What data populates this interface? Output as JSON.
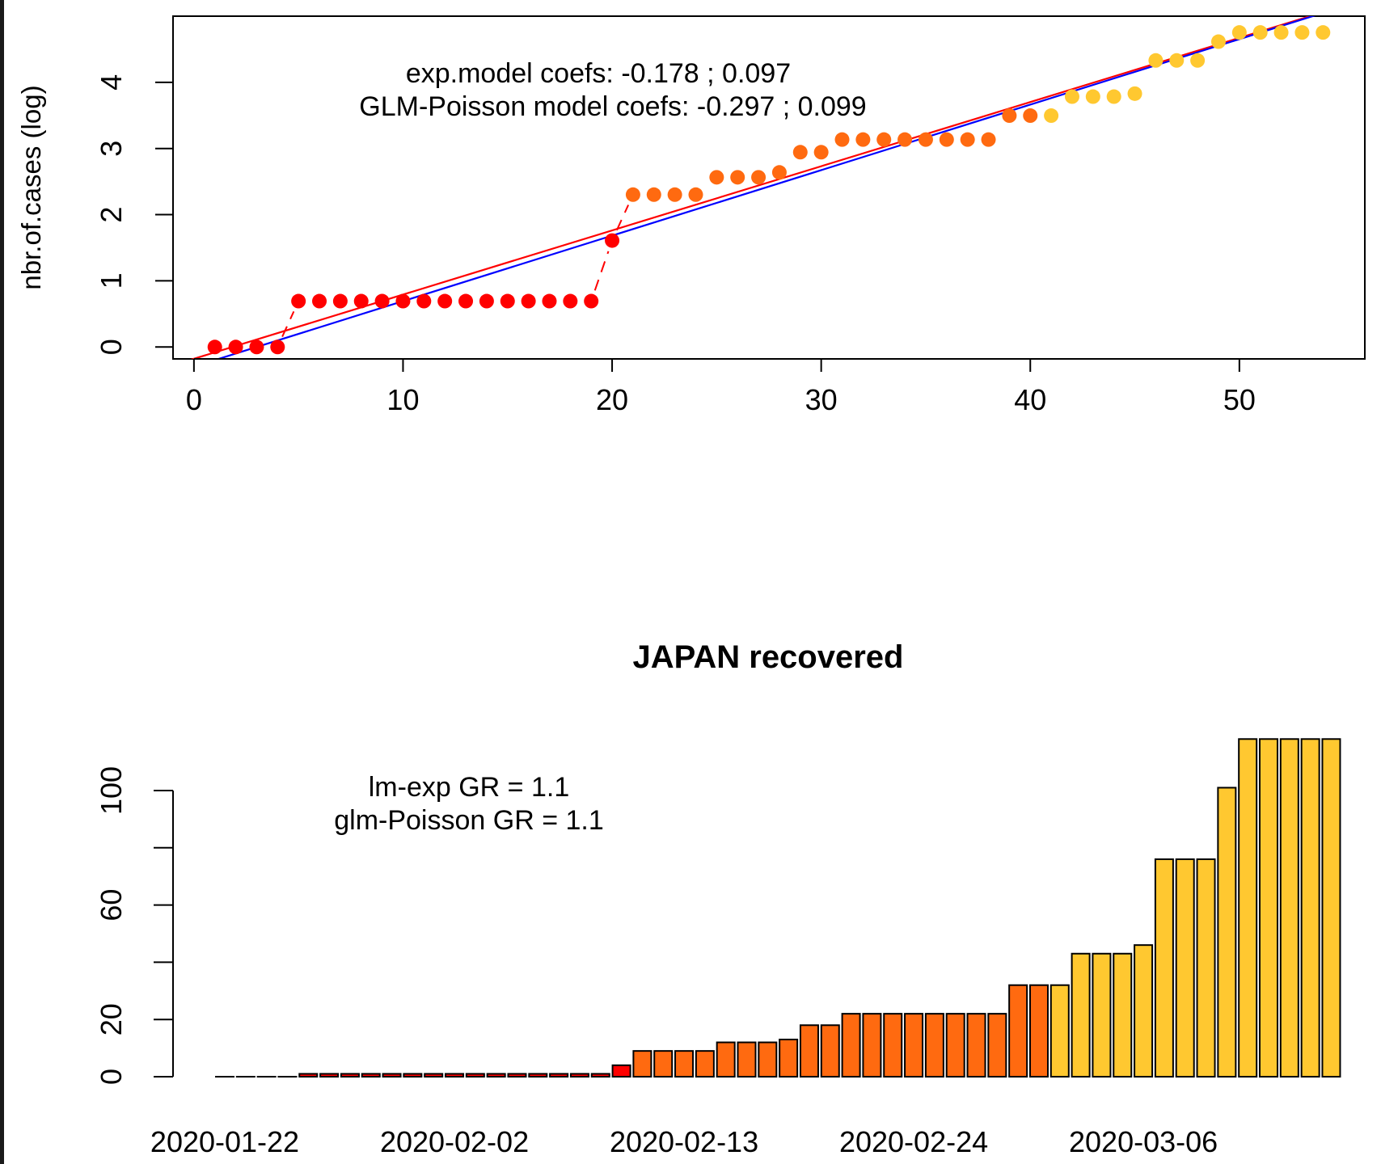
{
  "chart_data": [
    {
      "type": "scatter",
      "title": "",
      "ylabel": "nbr.of.cases (log)",
      "xlabel": "",
      "xlim": [
        -1,
        56
      ],
      "ylim": [
        -0.18,
        5.0
      ],
      "xticks": [
        "0",
        "10",
        "20",
        "30",
        "40",
        "50"
      ],
      "yticks": [
        "0",
        "1",
        "2",
        "3",
        "4"
      ],
      "annotations": [
        "exp.model coefs:  -0.178 ; 0.097",
        "GLM-Poisson model coefs:  -0.297 ; 0.099"
      ],
      "points": {
        "x": [
          1,
          2,
          3,
          4,
          5,
          6,
          7,
          8,
          9,
          10,
          11,
          12,
          13,
          14,
          15,
          16,
          17,
          18,
          19,
          20,
          21,
          22,
          23,
          24,
          25,
          26,
          27,
          28,
          29,
          30,
          31,
          32,
          33,
          34,
          35,
          36,
          37,
          38,
          39,
          40,
          41,
          42,
          43,
          44,
          45,
          46,
          47,
          48,
          49,
          50,
          51,
          52,
          53,
          54
        ],
        "y": [
          0,
          0,
          0,
          0,
          0.693,
          0.693,
          0.693,
          0.693,
          0.693,
          0.693,
          0.693,
          0.693,
          0.693,
          0.693,
          0.693,
          0.693,
          0.693,
          0.693,
          0.693,
          1.609,
          2.303,
          2.303,
          2.303,
          2.303,
          2.565,
          2.565,
          2.565,
          2.639,
          2.944,
          2.944,
          3.135,
          3.135,
          3.135,
          3.135,
          3.135,
          3.135,
          3.135,
          3.135,
          3.497,
          3.497,
          3.497,
          3.784,
          3.784,
          3.784,
          3.829,
          4.331,
          4.331,
          4.331,
          4.615,
          4.754,
          4.754,
          4.754,
          4.754,
          4.754
        ],
        "colors": [
          "#ff0000",
          "#ff0000",
          "#ff0000",
          "#ff0000",
          "#ff0000",
          "#ff0000",
          "#ff0000",
          "#ff0000",
          "#ff0000",
          "#ff0000",
          "#ff0000",
          "#ff0000",
          "#ff0000",
          "#ff0000",
          "#ff0000",
          "#ff0000",
          "#ff0000",
          "#ff0000",
          "#ff0000",
          "#ff0000",
          "#ff6a10",
          "#ff6a10",
          "#ff6a10",
          "#ff6a10",
          "#ff6a10",
          "#ff6a10",
          "#ff6a10",
          "#ff6a10",
          "#ff6a10",
          "#ff6a10",
          "#ff6a10",
          "#ff6a10",
          "#ff6a10",
          "#ff6a10",
          "#ff6a10",
          "#ff6a10",
          "#ff6a10",
          "#ff6a10",
          "#ff6a10",
          "#ff6a10",
          "#ffc830",
          "#ffc830",
          "#ffc830",
          "#ffc830",
          "#ffc830",
          "#ffc830",
          "#ffc830",
          "#ffc830",
          "#ffc830",
          "#ffc830",
          "#ffc830",
          "#ffc830",
          "#ffc830",
          "#ffc830"
        ]
      },
      "connector_segments": [
        [
          4,
          0,
          5,
          0.693
        ],
        [
          19,
          0.693,
          20,
          1.609
        ],
        [
          20,
          1.609,
          21,
          2.303
        ]
      ],
      "lines": [
        {
          "color": "#ff0000",
          "intercept": -0.178,
          "slope": 0.097
        },
        {
          "color": "#0000ff",
          "intercept": -0.297,
          "slope": 0.099
        }
      ]
    },
    {
      "type": "bar",
      "title": "JAPAN recovered",
      "xlabel": "",
      "ylabel": "",
      "ylim": [
        0,
        124
      ],
      "yticks": [
        "0",
        "20",
        "60",
        "100"
      ],
      "ytick_values": [
        0,
        20,
        60,
        100
      ],
      "ytick_minor": [
        40,
        80
      ],
      "xtick_labels": [
        "2020-01-22",
        "2020-02-02",
        "2020-02-13",
        "2020-02-24",
        "2020-03-06"
      ],
      "xtick_positions": [
        1,
        12,
        23,
        34,
        45
      ],
      "annotations": [
        "lm-exp GR =  1.1",
        "glm-Poisson GR =  1.1"
      ],
      "values": [
        0,
        0,
        0,
        0,
        1,
        1,
        1,
        1,
        1,
        1,
        1,
        1,
        1,
        1,
        1,
        1,
        1,
        1,
        1,
        4,
        9,
        9,
        9,
        9,
        12,
        12,
        12,
        13,
        18,
        18,
        22,
        22,
        22,
        22,
        22,
        22,
        22,
        22,
        32,
        32,
        32,
        43,
        43,
        43,
        46,
        76,
        76,
        76,
        101,
        118,
        118,
        118,
        118,
        118
      ],
      "colors": [
        "#ff0000",
        "#ff0000",
        "#ff0000",
        "#ff0000",
        "#ff0000",
        "#ff0000",
        "#ff0000",
        "#ff0000",
        "#ff0000",
        "#ff0000",
        "#ff0000",
        "#ff0000",
        "#ff0000",
        "#ff0000",
        "#ff0000",
        "#ff0000",
        "#ff0000",
        "#ff0000",
        "#ff0000",
        "#ff0000",
        "#ff6a10",
        "#ff6a10",
        "#ff6a10",
        "#ff6a10",
        "#ff6a10",
        "#ff6a10",
        "#ff6a10",
        "#ff6a10",
        "#ff6a10",
        "#ff6a10",
        "#ff6a10",
        "#ff6a10",
        "#ff6a10",
        "#ff6a10",
        "#ff6a10",
        "#ff6a10",
        "#ff6a10",
        "#ff6a10",
        "#ff6a10",
        "#ff6a10",
        "#ffc830",
        "#ffc830",
        "#ffc830",
        "#ffc830",
        "#ffc830",
        "#ffc830",
        "#ffc830",
        "#ffc830",
        "#ffc830",
        "#ffc830",
        "#ffc830",
        "#ffc830",
        "#ffc830",
        "#ffc830"
      ]
    }
  ]
}
